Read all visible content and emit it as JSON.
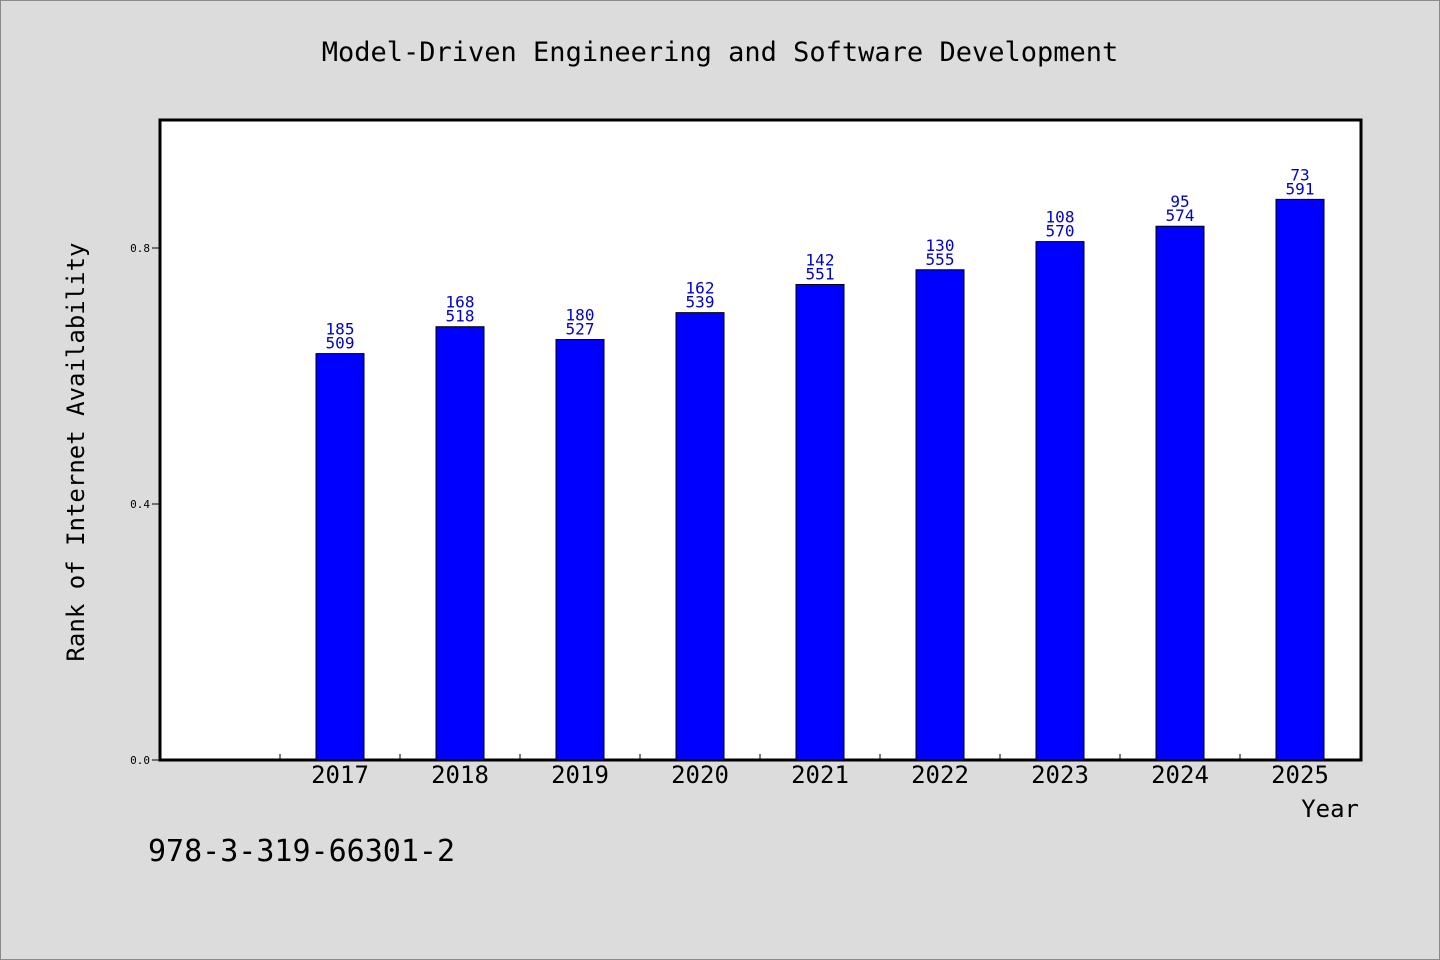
{
  "chart_data": {
    "type": "bar",
    "title": "Model-Driven Engineering and Software Development",
    "xlabel": "Year",
    "ylabel": "Rank of Internet Availability",
    "categories": [
      "2017",
      "2018",
      "2019",
      "2020",
      "2021",
      "2022",
      "2023",
      "2024",
      "2025"
    ],
    "values": [
      0.635,
      0.677,
      0.657,
      0.699,
      0.743,
      0.766,
      0.81,
      0.834,
      0.876
    ],
    "upper_labels": [
      "185",
      "168",
      "180",
      "162",
      "142",
      "130",
      "108",
      "95",
      "73"
    ],
    "lower_labels": [
      "509",
      "518",
      "527",
      "539",
      "551",
      "555",
      "570",
      "574",
      "591"
    ],
    "yticks": [
      "0.0",
      "0.4",
      "0.8"
    ],
    "ylim": [
      0,
      1.0
    ],
    "grid": false,
    "bar_color": "#0000ff",
    "label_color": "#0000cc",
    "plot_background": "#ffffff",
    "page_background": "#dcdcdc"
  },
  "footer": {
    "isbn": "978-3-319-66301-2"
  }
}
